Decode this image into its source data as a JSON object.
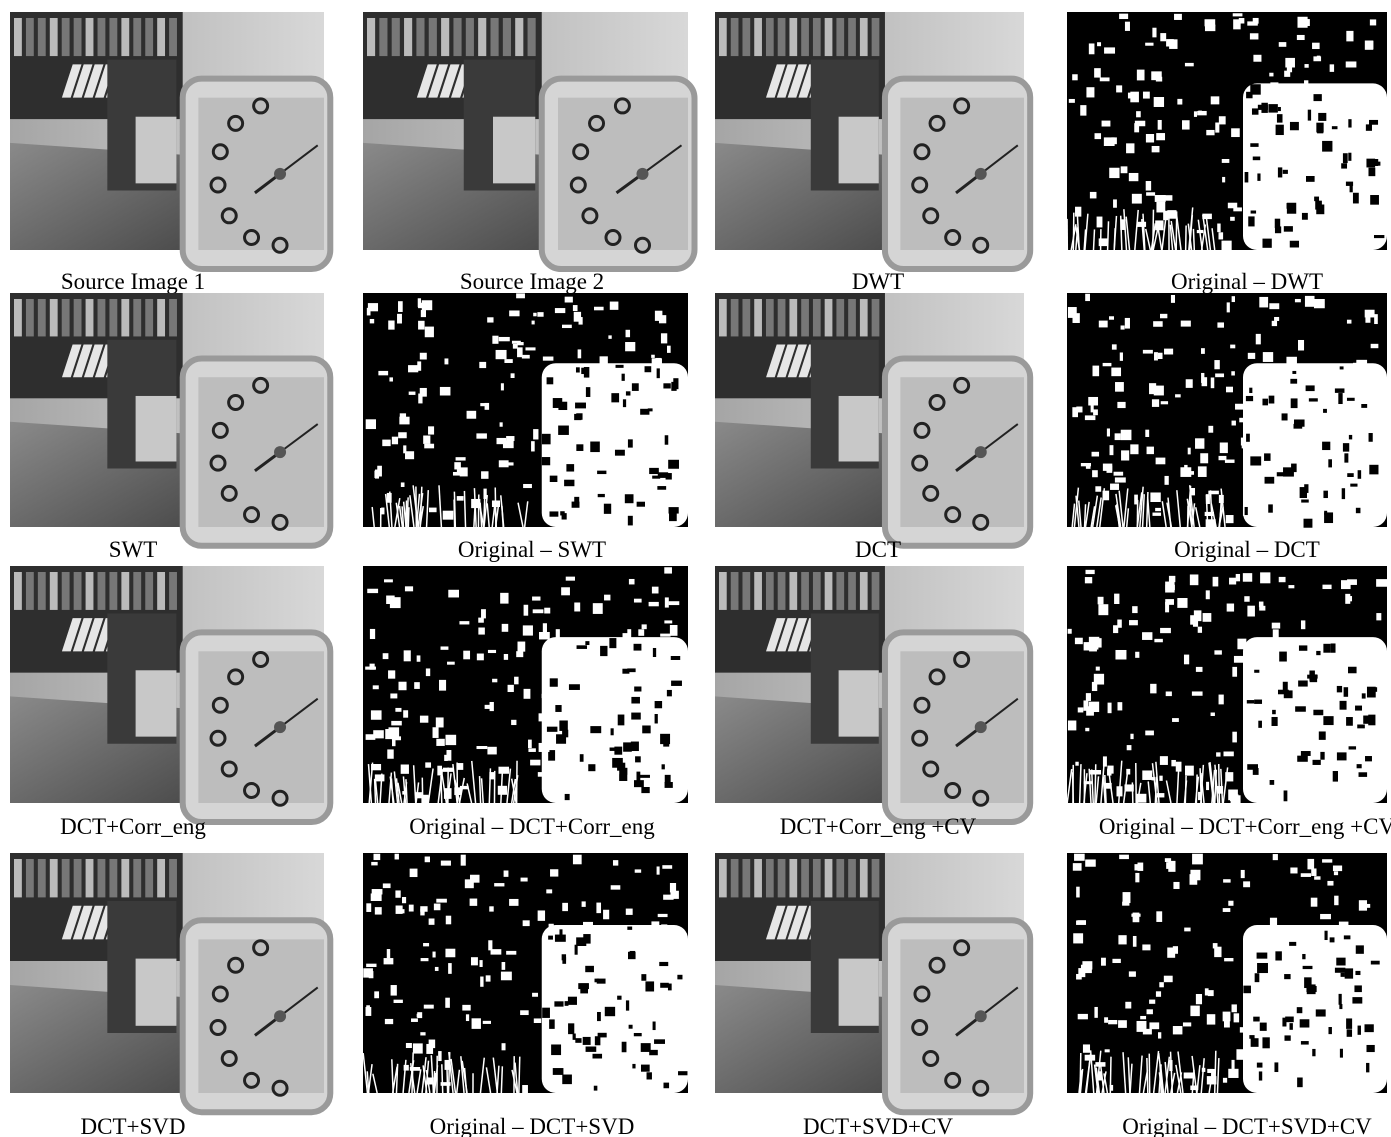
{
  "panels": [
    {
      "caption": "Source Image 1"
    },
    {
      "caption": "Source Image 2"
    },
    {
      "caption": "DWT"
    },
    {
      "caption": "Original – DWT"
    },
    {
      "caption": "SWT"
    },
    {
      "caption": "Original – SWT"
    },
    {
      "caption": "DCT"
    },
    {
      "caption": "Original – DCT"
    },
    {
      "caption": "DCT+Corr_eng"
    },
    {
      "caption": "Original – DCT+Corr_eng"
    },
    {
      "caption": "DCT+Corr_eng +CV"
    },
    {
      "caption": "Original – DCT+Corr_eng +CV"
    },
    {
      "caption": "DCT+SVD"
    },
    {
      "caption": "Original – DCT+SVD"
    },
    {
      "caption": "DCT+SVD+CV"
    },
    {
      "caption": "Original – DCT+SVD+CV"
    }
  ]
}
